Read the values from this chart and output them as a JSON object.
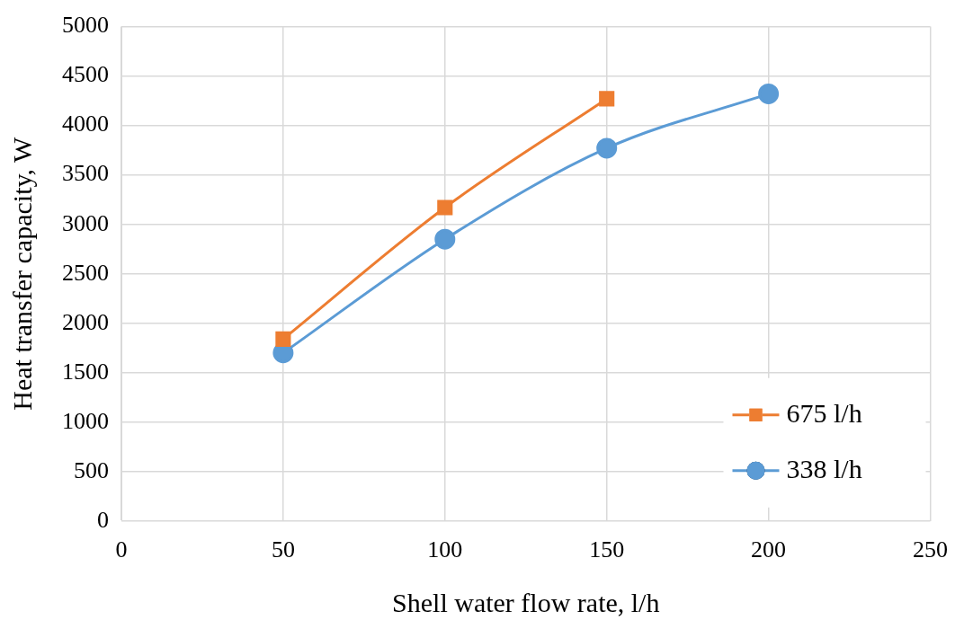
{
  "chart_data": {
    "type": "line",
    "xlabel": "Shell water flow rate, l/h",
    "ylabel": "Heat transfer capacity, W",
    "xlim": [
      0,
      250
    ],
    "xticks": [
      0,
      50,
      100,
      150,
      200,
      250
    ],
    "ylim": [
      0,
      5000
    ],
    "yticks": [
      0,
      500,
      1000,
      1500,
      2000,
      2500,
      3000,
      3500,
      4000,
      4500,
      5000
    ],
    "grid": true,
    "legend": "bottom right",
    "series": [
      {
        "name": "675 l/h",
        "color": "#ed7d31",
        "marker": "square",
        "x": [
          50,
          100,
          150
        ],
        "values": [
          1840,
          3170,
          4270
        ]
      },
      {
        "name": "338 l/h",
        "color": "#5b9bd5",
        "marker": "circle",
        "x": [
          50,
          100,
          150,
          200
        ],
        "values": [
          1700,
          2850,
          3770,
          4320
        ]
      }
    ]
  }
}
